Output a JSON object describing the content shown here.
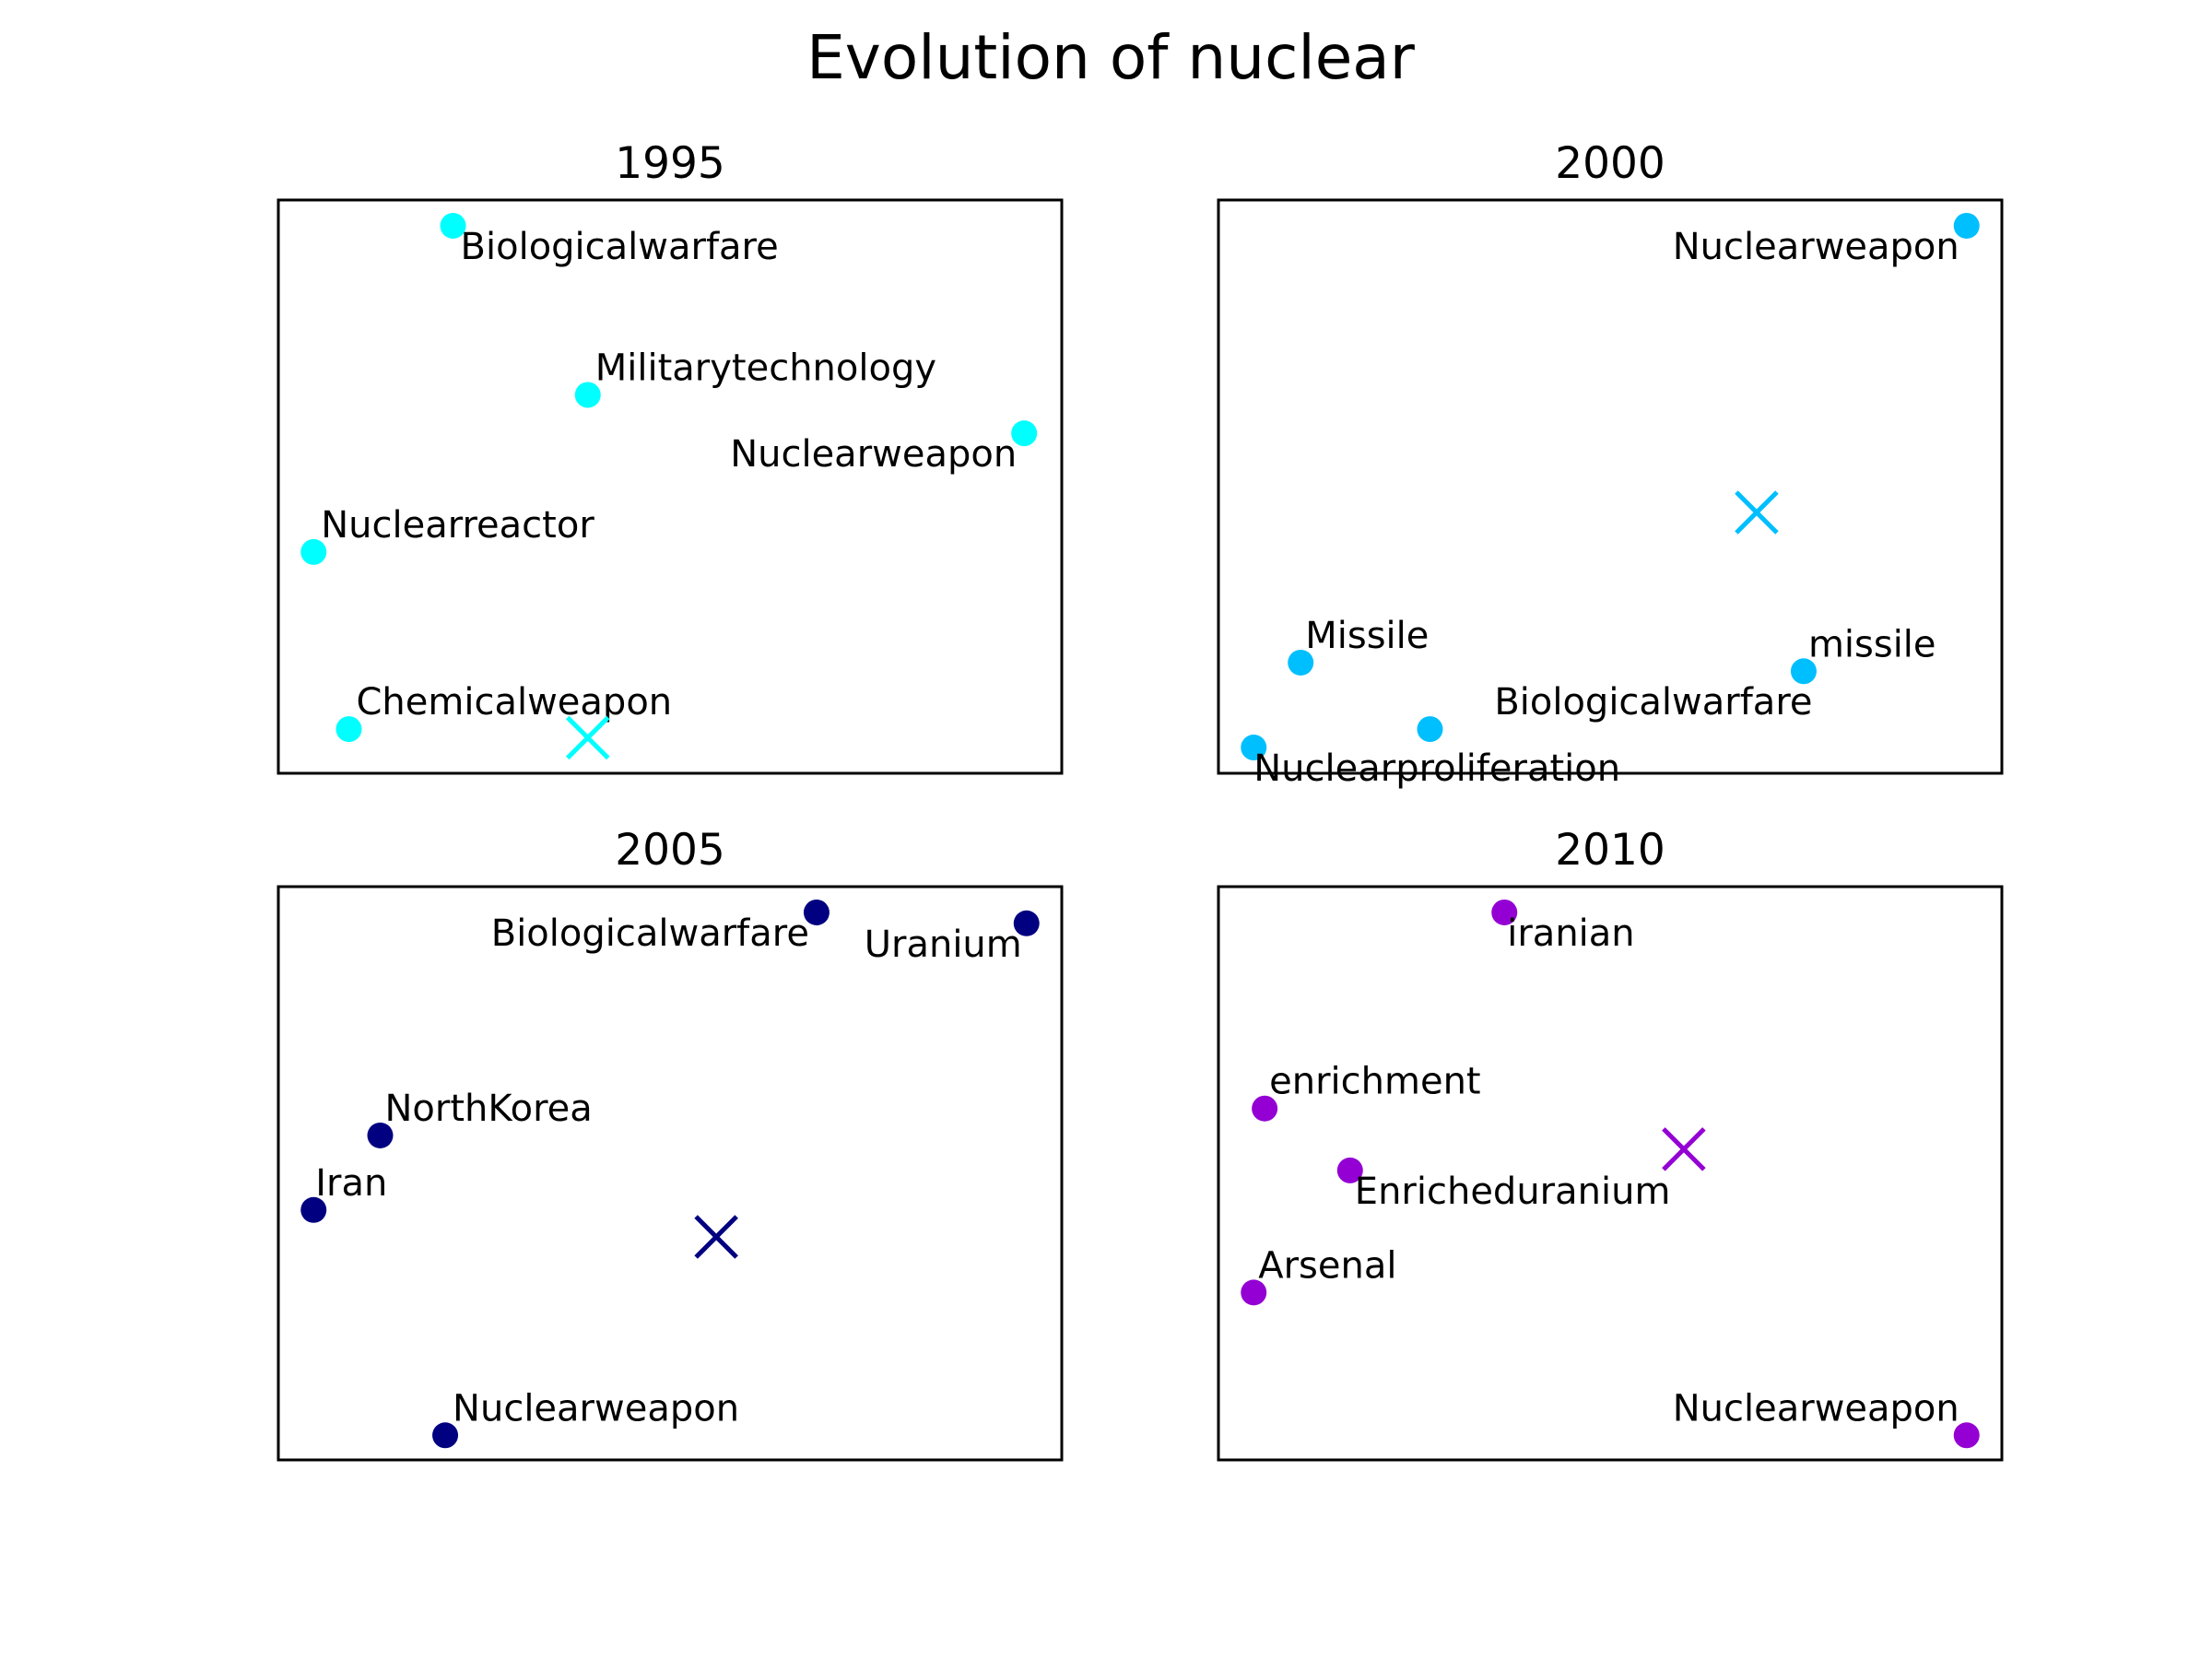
{
  "title": "Evolution of nuclear",
  "chart_data": [
    {
      "type": "scatter",
      "title": "1995",
      "color": "#00ffff",
      "xlim": [
        0,
        100
      ],
      "ylim": [
        0,
        100
      ],
      "grid": false,
      "points": [
        {
          "label": "Biologicalwarfare",
          "x": 22.3,
          "y": 95.5
        },
        {
          "label": "Militarytechnology",
          "x": 39.5,
          "y": 66.0
        },
        {
          "label": "Nuclearweapon",
          "x": 95.2,
          "y": 59.3
        },
        {
          "label": "Nuclearreactor",
          "x": 4.5,
          "y": 38.6
        },
        {
          "label": "Chemicalweapon",
          "x": 9.0,
          "y": 7.7
        }
      ],
      "centroid": {
        "x": 39.5,
        "y": 6.2
      }
    },
    {
      "type": "scatter",
      "title": "2000",
      "color": "#00bfff",
      "xlim": [
        0,
        100
      ],
      "ylim": [
        0,
        100
      ],
      "grid": false,
      "points": [
        {
          "label": "Nuclearweapon",
          "x": 95.5,
          "y": 95.5
        },
        {
          "label": "Missile",
          "x": 10.5,
          "y": 19.3
        },
        {
          "label": "missile",
          "x": 74.7,
          "y": 17.8
        },
        {
          "label": "Biologicalwarfare",
          "x": 27.0,
          "y": 7.7
        },
        {
          "label": "Nuclearproliferation",
          "x": 4.5,
          "y": 4.5
        }
      ],
      "centroid": {
        "x": 68.7,
        "y": 45.5
      }
    },
    {
      "type": "scatter",
      "title": "2005",
      "color": "#000080",
      "xlim": [
        0,
        100
      ],
      "ylim": [
        0,
        100
      ],
      "grid": false,
      "points": [
        {
          "label": "Biologicalwarfare",
          "x": 68.7,
          "y": 95.5
        },
        {
          "label": "Uranium",
          "x": 95.5,
          "y": 93.6
        },
        {
          "label": "NorthKorea",
          "x": 13.0,
          "y": 56.6
        },
        {
          "label": "Iran",
          "x": 4.5,
          "y": 43.6
        },
        {
          "label": "Nuclearweapon",
          "x": 21.3,
          "y": 4.3
        }
      ],
      "centroid": {
        "x": 55.9,
        "y": 38.9
      }
    },
    {
      "type": "scatter",
      "title": "2010",
      "color": "#9400d3",
      "xlim": [
        0,
        100
      ],
      "ylim": [
        0,
        100
      ],
      "grid": false,
      "points": [
        {
          "label": "iranian",
          "x": 36.5,
          "y": 95.5
        },
        {
          "label": "enrichment",
          "x": 5.9,
          "y": 61.3
        },
        {
          "label": "Enricheduranium",
          "x": 16.8,
          "y": 50.5
        },
        {
          "label": "Arsenal",
          "x": 4.5,
          "y": 29.2
        },
        {
          "label": "Nuclearweapon",
          "x": 95.5,
          "y": 4.3
        }
      ],
      "centroid": {
        "x": 59.4,
        "y": 54.2
      }
    }
  ]
}
